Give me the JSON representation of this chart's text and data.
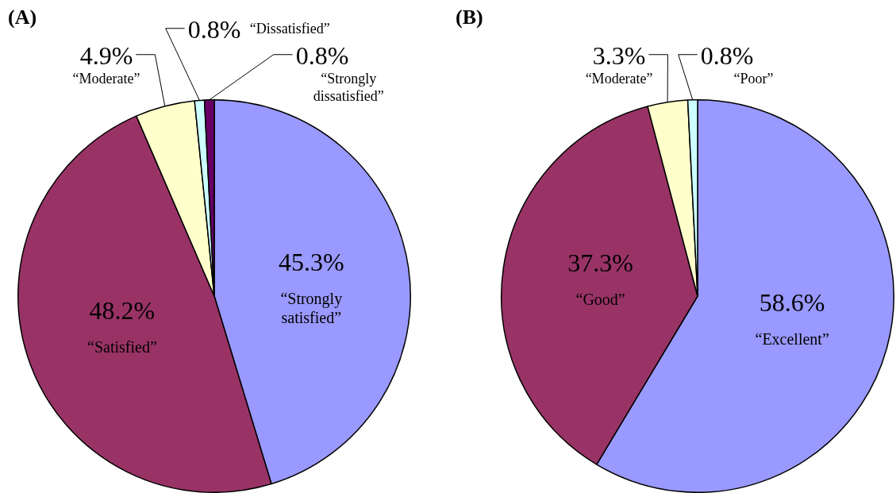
{
  "chart_data": [
    {
      "type": "pie",
      "title": "(A)",
      "categories": [
        "“Strongly satisfied”",
        "“Satisfied”",
        "“Moderate”",
        "“Dissatisfied”",
        "“Strongly dissatisfied”"
      ],
      "values": [
        45.3,
        48.2,
        4.9,
        0.8,
        0.8
      ],
      "colors": [
        "#9999ff",
        "#993366",
        "#ffffcc",
        "#ccffff",
        "#660066"
      ],
      "value_labels": [
        "45.3%",
        "48.2%",
        "4.9%",
        "0.8%",
        "0.8%"
      ]
    },
    {
      "type": "pie",
      "title": "(B)",
      "categories": [
        "“Excellent”",
        "“Good”",
        "“Moderate”",
        "“Poor”"
      ],
      "values": [
        58.6,
        37.3,
        3.3,
        0.8
      ],
      "colors": [
        "#9999ff",
        "#993366",
        "#ffffcc",
        "#ccffff"
      ],
      "value_labels": [
        "58.6%",
        "37.3%",
        "3.3%",
        "0.8%"
      ]
    }
  ]
}
